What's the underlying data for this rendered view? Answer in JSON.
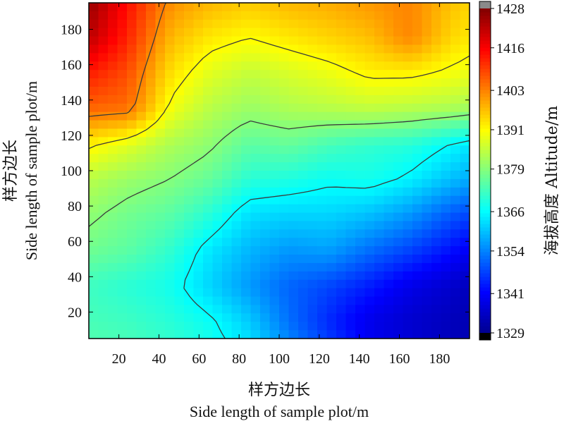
{
  "chart_data": {
    "type": "heatmap",
    "subtype": "filled contour with contour lines",
    "xlabel": "样方边长",
    "xlabel_en": "Side length of sample plot/m",
    "ylabel": "样方边长",
    "ylabel_en": "Side length of sample plot/m",
    "colorbar_label": "海拔高度 Altitude/m",
    "xlim": [
      5,
      195
    ],
    "ylim": [
      5,
      195
    ],
    "x_ticks": [
      20,
      40,
      60,
      80,
      100,
      120,
      140,
      160,
      180
    ],
    "y_ticks": [
      20,
      40,
      60,
      80,
      100,
      120,
      140,
      160,
      180
    ],
    "colorbar_range": [
      1329,
      1428
    ],
    "colorbar_ticks": [
      1329,
      1341,
      1354,
      1366,
      1379,
      1391,
      1403,
      1416,
      1428
    ],
    "colormap": "jet",
    "grid_x": [
      5,
      25,
      45,
      65,
      85,
      105,
      125,
      145,
      165,
      185,
      195
    ],
    "grid_y": [
      195,
      175,
      155,
      135,
      115,
      95,
      75,
      55,
      35,
      15,
      5
    ],
    "z": [
      [
        1426,
        1414,
        1402,
        1398,
        1396,
        1398,
        1399,
        1401,
        1403,
        1397,
        1395
      ],
      [
        1422,
        1412,
        1398,
        1393,
        1391,
        1393,
        1395,
        1397,
        1403,
        1395,
        1393
      ],
      [
        1413,
        1408,
        1394,
        1388,
        1385,
        1387,
        1389,
        1392,
        1392,
        1390,
        1389
      ],
      [
        1406,
        1405,
        1390,
        1384,
        1381,
        1383,
        1384,
        1385,
        1384,
        1383,
        1382
      ],
      [
        1392,
        1388,
        1383,
        1380,
        1375,
        1376,
        1373,
        1371,
        1370,
        1366,
        1364
      ],
      [
        1384,
        1381,
        1379,
        1376,
        1370,
        1369,
        1367,
        1368,
        1365,
        1360,
        1358
      ],
      [
        1380,
        1377,
        1375,
        1370,
        1363,
        1362,
        1362,
        1360,
        1356,
        1350,
        1348
      ],
      [
        1377,
        1375,
        1371,
        1364,
        1359,
        1356,
        1357,
        1352,
        1348,
        1343,
        1340
      ],
      [
        1372,
        1370,
        1368,
        1362,
        1356,
        1351,
        1348,
        1344,
        1339,
        1336,
        1334
      ],
      [
        1373,
        1372,
        1370,
        1367,
        1361,
        1352,
        1345,
        1339,
        1336,
        1334,
        1333
      ],
      [
        1374,
        1373,
        1371,
        1368,
        1363,
        1354,
        1347,
        1340,
        1337,
        1334,
        1333
      ]
    ],
    "contour_levels": [
      1366,
      1379,
      1391,
      1403
    ],
    "grid": false,
    "colors": {
      "jet": [
        "#00008f",
        "#0000ff",
        "#0080ff",
        "#00ffff",
        "#80ff80",
        "#ffff00",
        "#ff8000",
        "#ff0000",
        "#800000"
      ],
      "contour_line": "#3b3b3b",
      "cb_over": "#8a8a8a",
      "cb_under": "#000000"
    }
  }
}
